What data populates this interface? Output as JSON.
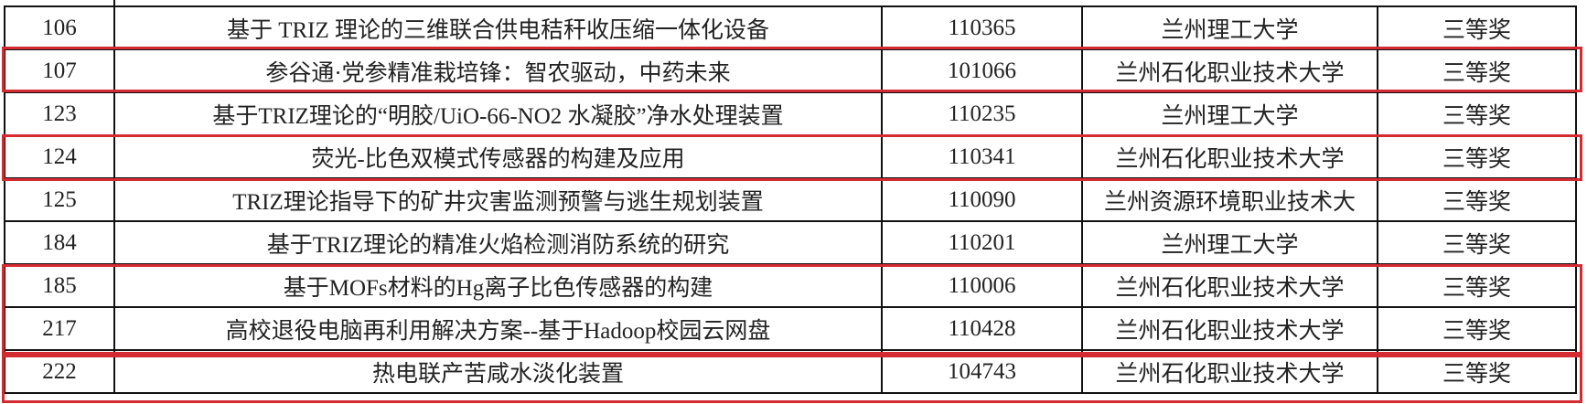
{
  "rows": [
    {
      "no": "106",
      "title": "基于 TRIZ 理论的三维联合供电秸秆收压缩一体化设备",
      "code": "110365",
      "school": "兰州理工大学",
      "award": "三等奖"
    },
    {
      "no": "107",
      "title": "参谷通·党参精准栽培锋：智农驱动，中药未来",
      "code": "101066",
      "school": "兰州石化职业技术大学",
      "award": "三等奖"
    },
    {
      "no": "123",
      "title": "基于TRIZ理论的“明胶/UiO-66-NO2 水凝胶”净水处理装置",
      "code": "110235",
      "school": "兰州理工大学",
      "award": "三等奖"
    },
    {
      "no": "124",
      "title": "荧光-比色双模式传感器的构建及应用",
      "code": "110341",
      "school": "兰州石化职业技术大学",
      "award": "三等奖"
    },
    {
      "no": "125",
      "title": "TRIZ理论指导下的矿井灾害监测预警与逃生规划装置",
      "code": "110090",
      "school": "兰州资源环境职业技术大",
      "award": "三等奖"
    },
    {
      "no": "184",
      "title": "基于TRIZ理论的精准火焰检测消防系统的研究",
      "code": "110201",
      "school": "兰州理工大学",
      "award": "三等奖"
    },
    {
      "no": "185",
      "title": "基于MOFs材料的Hg离子比色传感器的构建",
      "code": "110006",
      "school": "兰州石化职业技术大学",
      "award": "三等奖"
    },
    {
      "no": "217",
      "title": "高校退役电脑再利用解决方案--基于Hadoop校园云网盘",
      "code": "110428",
      "school": "兰州石化职业技术大学",
      "award": "三等奖"
    },
    {
      "no": "222",
      "title": "热电联产苦咸水淡化装置",
      "code": "104743",
      "school": "兰州石化职业技术大学",
      "award": "三等奖"
    }
  ],
  "highlight_color": "#d42a32"
}
